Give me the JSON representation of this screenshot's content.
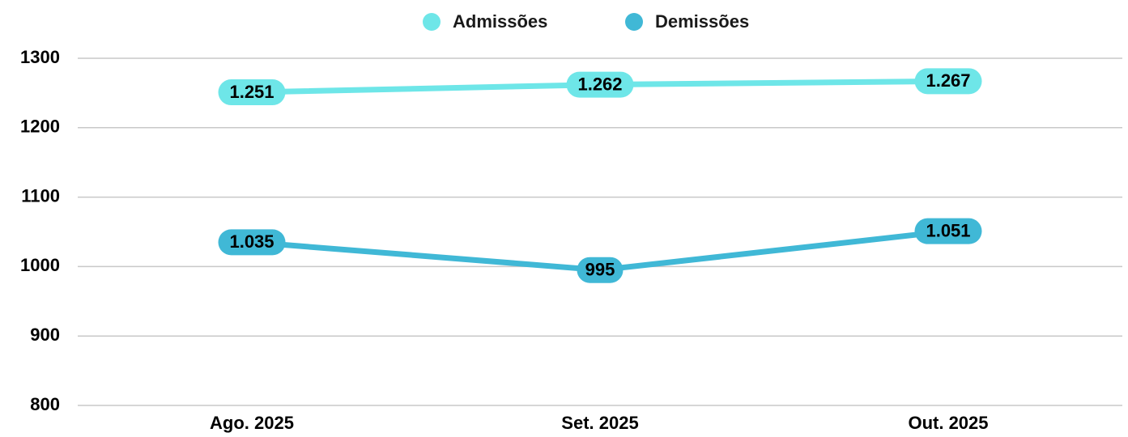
{
  "chart_data": {
    "type": "line",
    "categories": [
      "Ago. 2025",
      "Set. 2025",
      "Out. 2025"
    ],
    "series": [
      {
        "name": "Admissões",
        "color": "#6ee6e8",
        "values": [
          1251,
          1262,
          1267
        ],
        "value_labels": [
          "1.251",
          "1.262",
          "1.267"
        ]
      },
      {
        "name": "Demissões",
        "color": "#40b8d6",
        "values": [
          1035,
          995,
          1051
        ],
        "value_labels": [
          "1.035",
          "995",
          "1.051"
        ]
      }
    ],
    "ylim": [
      800,
      1300
    ],
    "yticks": [
      800,
      900,
      1000,
      1100,
      1200,
      1300
    ],
    "grid": true,
    "legend": "top"
  }
}
